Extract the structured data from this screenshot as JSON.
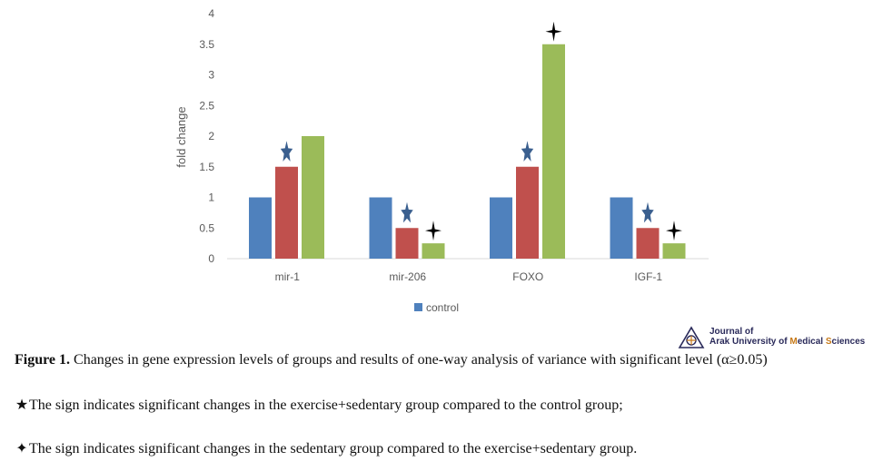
{
  "chart_data": {
    "type": "bar",
    "categories": [
      "mir-1",
      "mir-206",
      "FOXO",
      "IGF-1"
    ],
    "series": [
      {
        "name": "control",
        "values": [
          1,
          1,
          1,
          1
        ],
        "color": "#4f81bd"
      },
      {
        "values": [
          1.5,
          0.5,
          1.5,
          0.5
        ],
        "color": "#c0504d"
      },
      {
        "values": [
          2,
          0.25,
          3.5,
          0.25
        ],
        "color": "#9bbb59"
      }
    ],
    "ylabel": "fold change",
    "yticks": [
      "0",
      "0.5",
      "1",
      "1.5",
      "2",
      "2.5",
      "3",
      "3.5",
      "4"
    ],
    "ylim": [
      0,
      4
    ],
    "grid": false,
    "legend": "bottom",
    "star_markers": {
      "description_symbol": "★",
      "series_index": 1,
      "categories": [
        "mir-1",
        "mir-206",
        "FOXO",
        "IGF-1"
      ],
      "color": "#3a5f8f"
    },
    "cross_markers": {
      "description_symbol": "✦",
      "series_index": 2,
      "categories": [
        "mir-206",
        "FOXO",
        "IGF-1"
      ],
      "color": "#000000"
    }
  },
  "logo": {
    "line1": "Journal of",
    "line2a": "Arak University of ",
    "line2b": "M",
    "line2c": "edical ",
    "line2d": "S",
    "line2e": "ciences"
  },
  "caption": {
    "label": "Figure 1.",
    "text": " Changes in gene expression levels of groups and results of one-way analysis of variance with significant level (α≥0.05)",
    "note1_symbol": "★",
    "note1_text": "The sign indicates significant changes in the exercise+sedentary group compared to the control group;",
    "note2_symbol": "✦",
    "note2_text": "The sign indicates significant changes in the sedentary group compared to the exercise+sedentary group."
  }
}
